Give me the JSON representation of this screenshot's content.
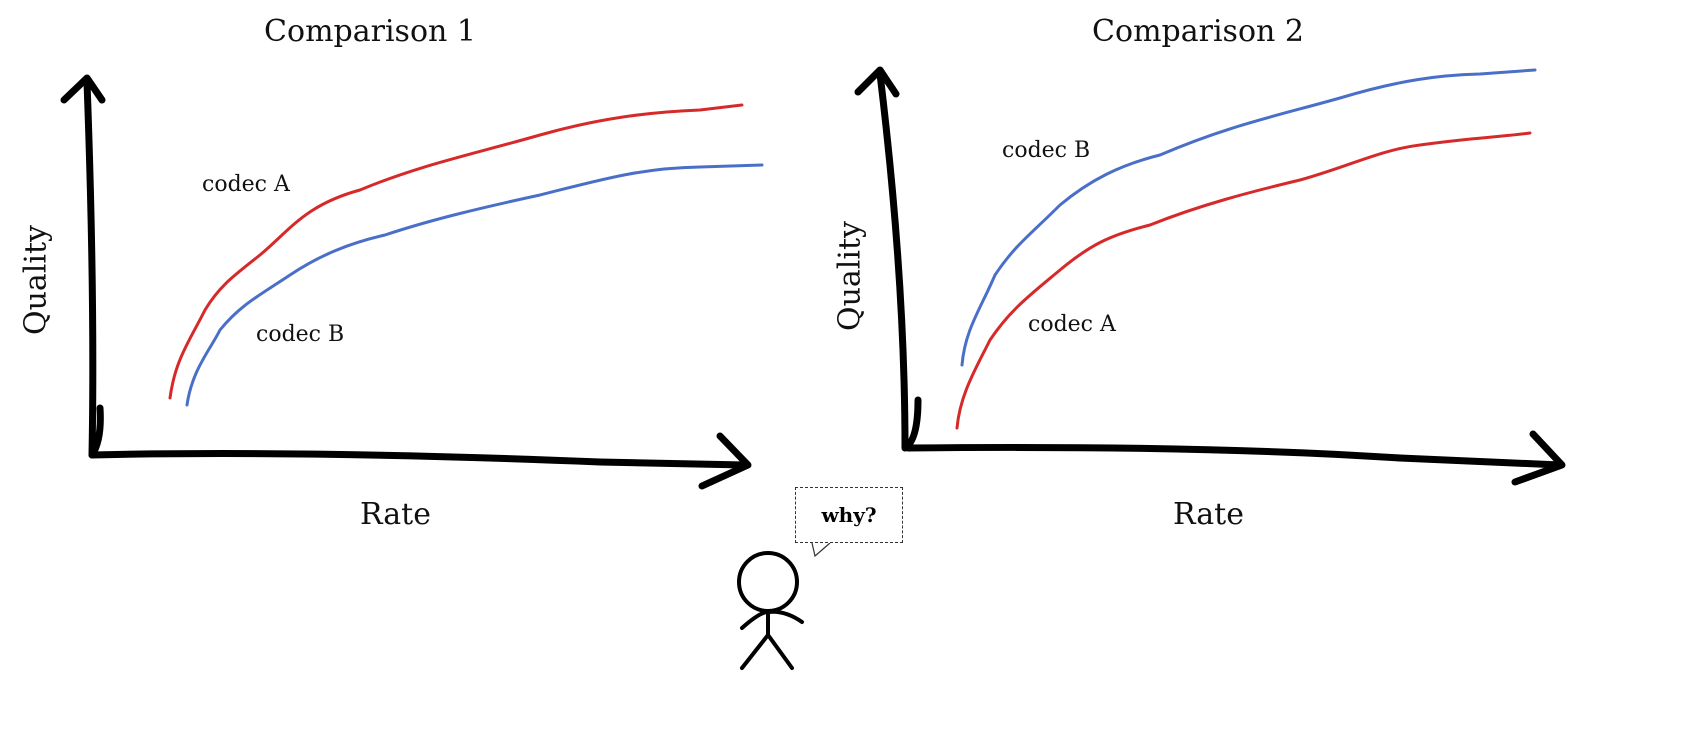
{
  "colors": {
    "codec_a": "#d62a2a",
    "codec_b": "#4a6fc8",
    "axes": "#000000"
  },
  "panels": [
    {
      "title": "Comparison 1",
      "ylabel": "Quality",
      "xlabel": "Rate",
      "codec_a_label": "codec A",
      "codec_b_label": "codec B",
      "higher_curve": "codec A"
    },
    {
      "title": "Comparison 2",
      "ylabel": "Quality",
      "xlabel": "Rate",
      "codec_a_label": "codec A",
      "codec_b_label": "codec B",
      "higher_curve": "codec B"
    }
  ],
  "speech_bubble": {
    "text": "why?"
  }
}
